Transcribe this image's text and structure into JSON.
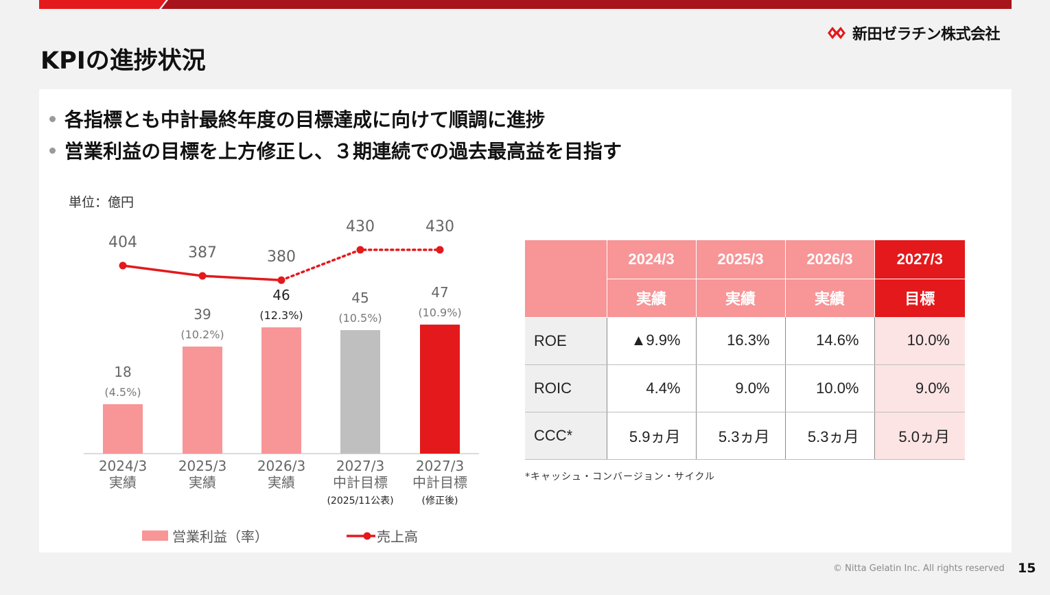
{
  "logo": {
    "text": "新田ゼラチン株式会社"
  },
  "title": "KPIの進捗状況",
  "bullets": [
    "各指標とも中計最終年度の目標達成に向けて順調に進捗",
    "営業利益の目標を上方修正し、３期連続での過去最高益を目指す"
  ],
  "unit_label": "単位：億円",
  "chart_data": {
    "type": "bar",
    "categories": [
      {
        "line1": "2024/3",
        "line2": "実績",
        "line3": ""
      },
      {
        "line1": "2025/3",
        "line2": "実績",
        "line3": ""
      },
      {
        "line1": "2026/3",
        "line2": "実績",
        "line3": ""
      },
      {
        "line1": "2027/3",
        "line2": "中計目標",
        "line3": "(2025/11公表)"
      },
      {
        "line1": "2027/3",
        "line2": "中計目標",
        "line3": "(修正後)"
      }
    ],
    "series": [
      {
        "name": "営業利益（率）",
        "type": "bar",
        "values": [
          18,
          39,
          46,
          45,
          47
        ],
        "rates": [
          "(4.5%)",
          "(10.2%)",
          "(12.3%)",
          "(10.5%)",
          "(10.9%)"
        ],
        "colors": [
          "#f79597",
          "#f79597",
          "#f79597",
          "#bfbfbf",
          "#e3191c"
        ]
      },
      {
        "name": "売上高",
        "type": "line",
        "values": [
          404,
          387,
          380,
          430,
          430
        ],
        "color": "#e3191c",
        "dotted_from_index": 2
      }
    ],
    "ylim_bar": [
      0,
      50
    ]
  },
  "legend": {
    "bar_label": "営業利益（率）",
    "line_label": "売上高"
  },
  "kpi_table": {
    "years": [
      "2024/3",
      "2025/3",
      "2026/3",
      "2027/3"
    ],
    "types": [
      "実績",
      "実績",
      "実績",
      "目標"
    ],
    "rows": [
      {
        "label": "ROE",
        "values": [
          "▲9.9%",
          "16.3%",
          "14.6%",
          "10.0%"
        ]
      },
      {
        "label": "ROIC",
        "values": [
          "4.4%",
          "9.0%",
          "10.0%",
          "9.0%"
        ]
      },
      {
        "label": "CCC*",
        "values": [
          "5.9ヵ月",
          "5.3ヵ月",
          "5.3ヵ月",
          "5.0ヵ月"
        ]
      }
    ]
  },
  "footnote": "*キャッシュ・コンバージョン・サイクル",
  "copyright": "© Nitta Gelatin Inc. All rights reserved",
  "page_number": "15",
  "colors": {
    "accent": "#e3191c",
    "pink": "#f79597",
    "gray": "#bfbfbf",
    "target_cell": "#fde4e4"
  }
}
